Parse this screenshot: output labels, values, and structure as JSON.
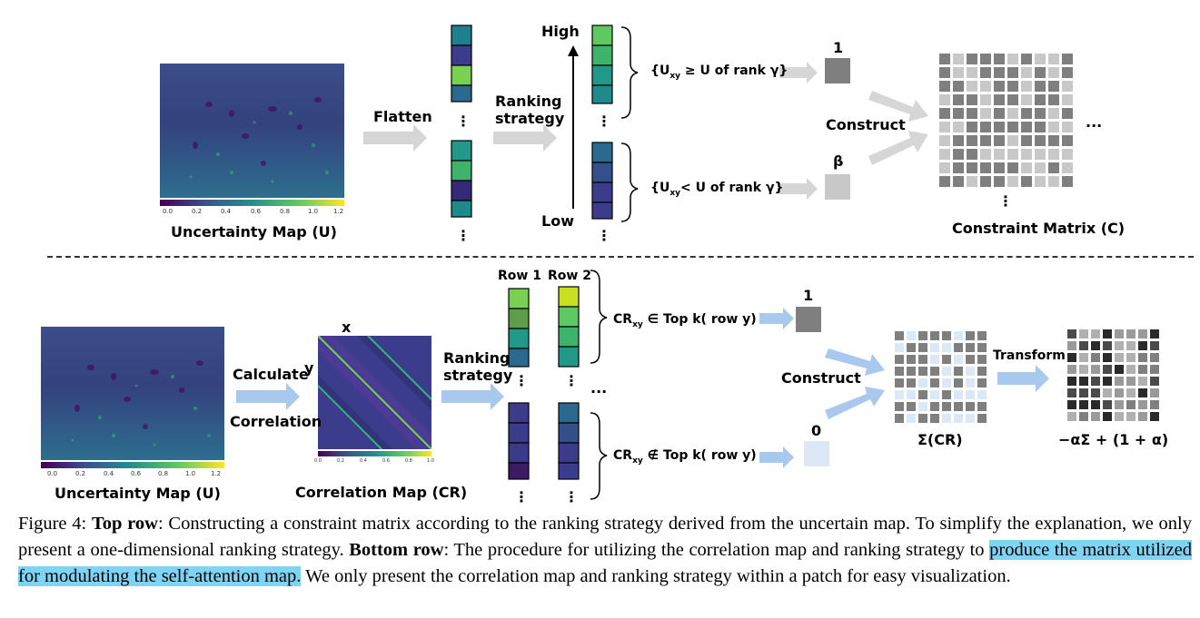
{
  "top_row": {
    "uncertainty_map_label": "Uncertainty Map (U)",
    "colorbar_ticks": [
      "0.0",
      "0.2",
      "0.4",
      "0.6",
      "0.8",
      "1.0",
      "1.2"
    ],
    "flatten_label": "Flatten",
    "ranking_label_line1": "Ranking",
    "ranking_label_line2": "strategy",
    "high_label": "High",
    "low_label": "Low",
    "upper_condition": "{U",
    "upper_condition_sub": "xy",
    "upper_condition_rest": " ≥ U of rank γ}",
    "lower_condition": "{U",
    "lower_condition_sub": "xy",
    "lower_condition_rest": "< U of rank γ}",
    "value_one": "1",
    "value_beta": "β",
    "construct_label": "Construct",
    "ellipsis_right": "...",
    "ellipsis_down": "⋮",
    "constraint_matrix_label": "Constraint Matrix (C)"
  },
  "bottom_row": {
    "uncertainty_map_label": "Uncertainty Map (U)",
    "colorbar_ticks": [
      "0.0",
      "0.2",
      "0.4",
      "0.6",
      "0.8",
      "1.0",
      "1.2"
    ],
    "calculate_label": "Calculate",
    "correlation_label": "Correlation",
    "axis_x": "x",
    "axis_y": "y",
    "corr_ticks": [
      "0.0",
      "0.2",
      "0.4",
      "0.6",
      "0.8",
      "1.0"
    ],
    "correlation_map_label": "Correlation Map (CR)",
    "ranking_label_line1": "Ranking",
    "ranking_label_line2": "strategy",
    "row1_label": "Row 1",
    "row2_label": "Row 2",
    "cr_in_main": "CR",
    "cr_in_sub": "xy",
    "cr_in_rest": " ∈ Top k( row y)",
    "cr_notin_main": "CR",
    "cr_notin_sub": "xy",
    "cr_notin_rest": " ∉  Top k( row y)",
    "value_one": "1",
    "value_zero": "0",
    "construct_label": "Construct",
    "transform_label": "Transform",
    "sigma_label": "Σ(CR)",
    "result_label": "−αΣ + (1 + α)",
    "ellipsis_right": "...",
    "ellipsis_down": "⋮"
  },
  "caption": {
    "figure_label": "Figure 4: ",
    "top_bold": "Top row",
    "text1": ": Constructing a constraint matrix according to the ranking strategy derived from the uncertain map. To simplify the explanation, we only present a one-dimensional ranking strategy. ",
    "bottom_bold": "Bottom row",
    "text2": ": The procedure for utilizing the correlation map and ranking strategy to ",
    "highlight": "produce the matrix utilized for modulating the self-attention map.",
    "text3": " We only present the correlation map and ranking strategy within a patch for easy visualization."
  },
  "colors": {
    "arrow": "#d6d6d6",
    "blue_arrow": "#a9c8ee",
    "highlight": "#7fd4f4",
    "dark_gray": "#7f7f7f",
    "light_gray": "#c8c8c8"
  }
}
